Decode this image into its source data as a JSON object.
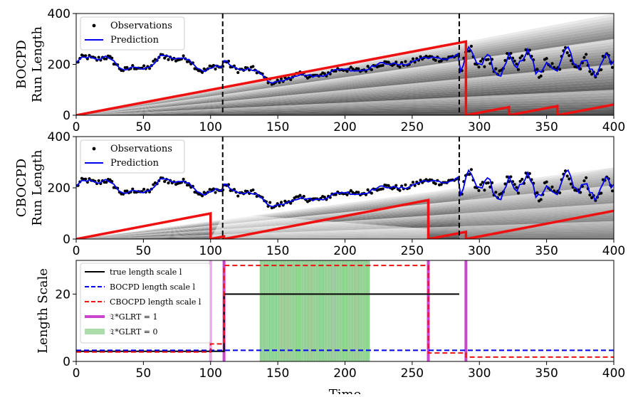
{
  "chart_data": [
    {
      "type": "line",
      "ylabel_lines": [
        "BOCPD",
        "Run Length"
      ],
      "xlim": [
        0,
        400
      ],
      "ylim": [
        0,
        400
      ],
      "xticks": [
        0,
        50,
        100,
        150,
        200,
        250,
        300,
        350,
        400
      ],
      "yticks": [
        0,
        200,
        400
      ],
      "changepoints": [
        109,
        285
      ],
      "legend": {
        "placement": "top-left",
        "entries": [
          "Observations",
          "Prediction"
        ]
      },
      "run_length": [
        [
          0,
          0
        ],
        [
          290,
          290
        ],
        [
          290,
          0
        ],
        [
          322,
          32
        ],
        [
          322,
          0
        ],
        [
          358,
          36
        ],
        [
          358,
          0
        ],
        [
          400,
          42
        ]
      ],
      "observation_color": "#000000",
      "prediction_color": "#0000ee",
      "run_length_color": "#ee1111"
    },
    {
      "type": "line",
      "ylabel_lines": [
        "CBOCPD",
        "Run Length"
      ],
      "xlim": [
        0,
        400
      ],
      "ylim": [
        0,
        400
      ],
      "xticks": [
        0,
        50,
        100,
        150,
        200,
        250,
        300,
        350,
        400
      ],
      "yticks": [
        0,
        200,
        400
      ],
      "changepoints": [
        109,
        285
      ],
      "legend": {
        "placement": "top-left",
        "entries": [
          "Observations",
          "Prediction"
        ]
      },
      "run_length": [
        [
          0,
          0
        ],
        [
          100,
          100
        ],
        [
          100,
          0
        ],
        [
          110,
          10
        ],
        [
          110,
          0
        ],
        [
          262,
          152
        ],
        [
          262,
          0
        ],
        [
          290,
          28
        ],
        [
          290,
          0
        ],
        [
          400,
          110
        ]
      ],
      "observation_color": "#000000",
      "prediction_color": "#0000ee",
      "run_length_color": "#ee1111"
    },
    {
      "type": "line",
      "ylabel": "Length Scale",
      "xlabel": "Time",
      "xlim": [
        0,
        400
      ],
      "ylim": [
        0,
        30
      ],
      "xticks": [
        0,
        50,
        100,
        150,
        200,
        250,
        300,
        350,
        400
      ],
      "yticks": [
        0,
        20
      ],
      "legend": {
        "placement": "top-left",
        "entries": [
          "true length scale l",
          "BOCPD length scale l",
          "CBOCPD length scale l",
          "𝔗*GLRT = 1",
          "𝔗*GLRT = 0"
        ]
      },
      "series": [
        {
          "name": "true length scale l",
          "color": "#000000",
          "dash": "solid",
          "points": [
            [
              0,
              3
            ],
            [
              110,
              3
            ],
            [
              110,
              20
            ],
            [
              285,
              20
            ]
          ]
        },
        {
          "name": "BOCPD length scale l",
          "color": "#0000ee",
          "dash": "dashed",
          "points": [
            [
              0,
              3.3
            ],
            [
              400,
              3.3
            ]
          ]
        },
        {
          "name": "CBOCPD length scale l",
          "color": "#ee1111",
          "dash": "dashed",
          "points": [
            [
              0,
              2.8
            ],
            [
              100,
              2.8
            ],
            [
              100,
              5.2
            ],
            [
              110,
              5.2
            ],
            [
              110,
              28.5
            ],
            [
              262,
              28.5
            ],
            [
              262,
              2.5
            ],
            [
              290,
              2.5
            ],
            [
              290,
              1.3
            ],
            [
              400,
              1.3
            ]
          ]
        }
      ],
      "glrt_one_at": [
        100,
        110,
        262,
        290
      ],
      "glrt_zero_span": [
        137,
        218
      ],
      "glrt_one_color": "#cc44cc",
      "glrt_zero_color": "#5cb85c"
    }
  ]
}
